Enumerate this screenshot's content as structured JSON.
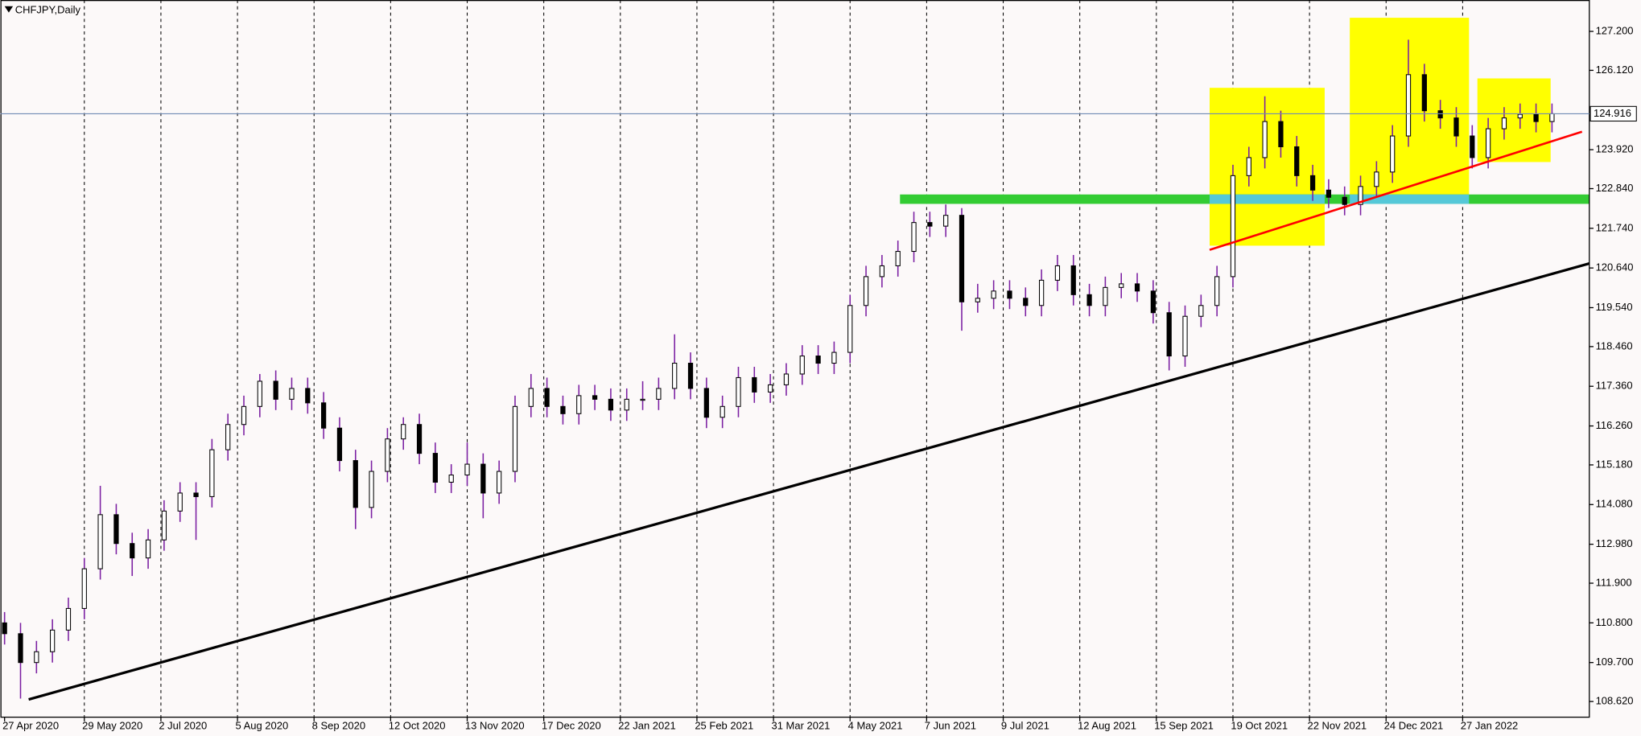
{
  "chart_data": {
    "type": "candlestick",
    "title": "CHFJPY,Daily",
    "x": [
      0,
      5,
      10,
      15,
      20,
      25,
      30,
      35,
      40,
      45,
      50,
      55,
      60,
      65,
      70,
      75,
      80,
      85,
      90,
      95,
      100,
      105,
      110,
      115,
      120,
      125,
      130,
      135,
      140,
      145,
      150,
      155,
      160,
      165,
      170,
      175,
      180,
      185,
      190,
      195,
      200,
      205,
      210,
      215,
      220,
      225,
      230,
      235,
      240,
      245,
      250,
      255,
      260,
      265,
      270,
      275,
      280,
      285,
      290,
      295,
      300,
      305,
      310,
      315,
      320,
      325,
      330,
      335,
      340,
      345,
      350,
      355,
      360,
      365,
      370,
      375,
      380,
      385,
      390,
      395,
      400,
      405,
      410,
      415,
      420,
      425,
      430,
      435,
      440,
      445,
      450,
      455,
      460,
      465,
      470,
      475,
      480,
      485
    ],
    "open": [
      110.8,
      110.5,
      109.7,
      110.0,
      110.6,
      111.2,
      112.3,
      113.8,
      113.0,
      112.6,
      113.1,
      113.9,
      114.4,
      114.3,
      115.6,
      116.3,
      116.8,
      117.5,
      117.0,
      117.3,
      116.9,
      116.2,
      115.3,
      114.0,
      115.0,
      115.9,
      116.3,
      115.5,
      114.7,
      114.9,
      115.2,
      114.4,
      115.0,
      116.8,
      117.3,
      116.8,
      116.6,
      117.1,
      117.0,
      116.7,
      117.0,
      117.0,
      117.3,
      118.0,
      117.3,
      116.5,
      116.8,
      117.6,
      117.2,
      117.4,
      117.7,
      118.2,
      118.0,
      118.3,
      119.6,
      120.4,
      120.7,
      121.1,
      121.9,
      121.8,
      122.1,
      119.7,
      119.8,
      120.0,
      119.8,
      119.6,
      120.3,
      120.7,
      119.9,
      119.6,
      120.1,
      120.2,
      120.0,
      119.4,
      118.2,
      119.3,
      119.6,
      120.4,
      123.2,
      123.7,
      124.7,
      124.0,
      123.2,
      122.8,
      122.6,
      122.4,
      122.9,
      123.3,
      124.3,
      126.0,
      125.0,
      124.8,
      124.3,
      123.7,
      124.5,
      124.8,
      124.9,
      124.7
    ],
    "high": [
      111.1,
      110.8,
      110.3,
      110.9,
      111.5,
      112.6,
      114.6,
      114.1,
      113.3,
      113.4,
      114.2,
      114.7,
      114.7,
      115.9,
      116.6,
      117.1,
      117.7,
      117.8,
      117.6,
      117.6,
      117.2,
      116.5,
      115.6,
      115.3,
      116.2,
      116.5,
      116.6,
      115.8,
      115.2,
      115.8,
      115.5,
      115.3,
      117.1,
      117.7,
      117.6,
      117.1,
      117.4,
      117.4,
      117.3,
      117.3,
      117.5,
      117.6,
      118.8,
      118.3,
      117.6,
      117.1,
      117.9,
      117.9,
      117.7,
      118.0,
      118.5,
      118.5,
      118.6,
      119.9,
      120.7,
      121.0,
      121.4,
      122.2,
      122.2,
      122.4,
      122.3,
      120.2,
      120.3,
      120.3,
      120.1,
      120.6,
      121.0,
      121.0,
      120.2,
      120.4,
      120.5,
      120.5,
      120.3,
      119.7,
      119.6,
      119.9,
      120.7,
      123.5,
      124.0,
      125.4,
      125.0,
      124.3,
      123.5,
      123.1,
      122.9,
      123.2,
      123.6,
      124.6,
      126.97,
      126.3,
      125.3,
      125.1,
      124.6,
      124.8,
      125.1,
      125.2,
      125.2,
      125.2
    ],
    "low": [
      110.2,
      108.7,
      109.4,
      109.7,
      110.3,
      110.9,
      112.0,
      112.7,
      112.1,
      112.3,
      112.8,
      113.6,
      113.1,
      114.0,
      115.3,
      116.0,
      116.5,
      116.7,
      116.7,
      116.6,
      115.9,
      115.0,
      113.4,
      113.7,
      114.7,
      115.6,
      115.2,
      114.4,
      114.4,
      114.6,
      113.7,
      114.1,
      114.7,
      116.5,
      116.5,
      116.3,
      116.3,
      116.7,
      116.4,
      116.4,
      116.7,
      116.7,
      117.0,
      117.0,
      116.2,
      116.2,
      116.5,
      116.9,
      116.9,
      117.1,
      117.4,
      117.7,
      117.7,
      118.0,
      119.3,
      120.1,
      120.4,
      120.8,
      121.5,
      121.5,
      118.9,
      119.4,
      119.5,
      119.5,
      119.3,
      119.3,
      120.0,
      119.6,
      119.3,
      119.3,
      119.8,
      119.7,
      119.1,
      117.8,
      117.9,
      119.0,
      119.3,
      120.1,
      122.9,
      123.4,
      123.7,
      122.9,
      122.5,
      122.3,
      122.1,
      122.1,
      122.6,
      123.0,
      124.0,
      124.7,
      124.5,
      124.0,
      123.4,
      123.4,
      124.2,
      124.5,
      124.4,
      124.4
    ],
    "close": [
      110.5,
      109.7,
      110.0,
      110.6,
      111.2,
      112.3,
      113.8,
      113.0,
      112.6,
      113.1,
      113.9,
      114.4,
      114.3,
      115.6,
      116.3,
      116.8,
      117.5,
      117.0,
      117.3,
      116.9,
      116.2,
      115.3,
      114.0,
      115.0,
      115.9,
      116.3,
      115.5,
      114.7,
      114.9,
      115.2,
      114.4,
      115.0,
      116.8,
      117.3,
      116.8,
      116.6,
      117.1,
      117.0,
      116.7,
      117.0,
      117.0,
      117.3,
      118.0,
      117.3,
      116.5,
      116.8,
      117.6,
      117.2,
      117.4,
      117.7,
      118.2,
      118.0,
      118.3,
      119.6,
      120.4,
      120.7,
      121.1,
      121.9,
      121.8,
      122.1,
      119.7,
      119.8,
      120.0,
      119.8,
      119.6,
      120.3,
      120.7,
      119.9,
      119.6,
      120.1,
      120.2,
      120.0,
      119.4,
      118.2,
      119.3,
      119.6,
      120.4,
      123.2,
      123.7,
      124.7,
      124.0,
      123.2,
      122.8,
      122.6,
      122.4,
      122.9,
      123.3,
      124.3,
      126.0,
      125.0,
      124.8,
      124.3,
      123.7,
      124.5,
      124.8,
      124.9,
      124.7,
      124.916
    ],
    "color_up": "#ffffff",
    "color_down": "#000000",
    "wick_color": "#7b1fa2",
    "current_price": 124.916,
    "xlim": [
      -1.3,
      496.7
    ],
    "ylim": [
      108.185,
      128.07
    ],
    "xticks": [
      {
        "value": 0,
        "label": "27 Apr 2020"
      },
      {
        "value": 25,
        "label": "29 May 2020"
      },
      {
        "value": 49,
        "label": "2 Jul 2020"
      },
      {
        "value": 73,
        "label": "5 Aug 2020"
      },
      {
        "value": 97,
        "label": "8 Sep 2020"
      },
      {
        "value": 121,
        "label": "12 Oct 2020"
      },
      {
        "value": 145,
        "label": "13 Nov 2020"
      },
      {
        "value": 169,
        "label": "17 Dec 2020"
      },
      {
        "value": 193,
        "label": "22 Jan 2021"
      },
      {
        "value": 217,
        "label": "25 Feb 2021"
      },
      {
        "value": 241,
        "label": "31 Mar 2021"
      },
      {
        "value": 265,
        "label": "4 May 2021"
      },
      {
        "value": 289,
        "label": "7 Jun 2021"
      },
      {
        "value": 313,
        "label": "9 Jul 2021"
      },
      {
        "value": 337,
        "label": "12 Aug 2021"
      },
      {
        "value": 361,
        "label": "15 Sep 2021"
      },
      {
        "value": 385,
        "label": "19 Oct 2021"
      },
      {
        "value": 409,
        "label": "22 Nov 2021"
      },
      {
        "value": 433,
        "label": "24 Dec 2021"
      },
      {
        "value": 457,
        "label": "27 Jan 2022"
      }
    ],
    "yticks": [
      {
        "value": 127.2,
        "label": "127.200"
      },
      {
        "value": 126.12,
        "label": "126.120"
      },
      {
        "value": 123.92,
        "label": "123.920"
      },
      {
        "value": 122.84,
        "label": "122.840"
      },
      {
        "value": 121.74,
        "label": "121.740"
      },
      {
        "value": 120.64,
        "label": "120.640"
      },
      {
        "value": 119.54,
        "label": "119.540"
      },
      {
        "value": 118.46,
        "label": "118.460"
      },
      {
        "value": 117.36,
        "label": "117.360"
      },
      {
        "value": 116.26,
        "label": "116.260"
      },
      {
        "value": 115.18,
        "label": "115.180"
      },
      {
        "value": 114.08,
        "label": "114.080"
      },
      {
        "value": 112.98,
        "label": "112.980"
      },
      {
        "value": 111.9,
        "label": "111.900"
      },
      {
        "value": 110.8,
        "label": "110.800"
      },
      {
        "value": 109.7,
        "label": "109.700"
      },
      {
        "value": 108.62,
        "label": "108.620"
      }
    ],
    "grid": true
  }
}
